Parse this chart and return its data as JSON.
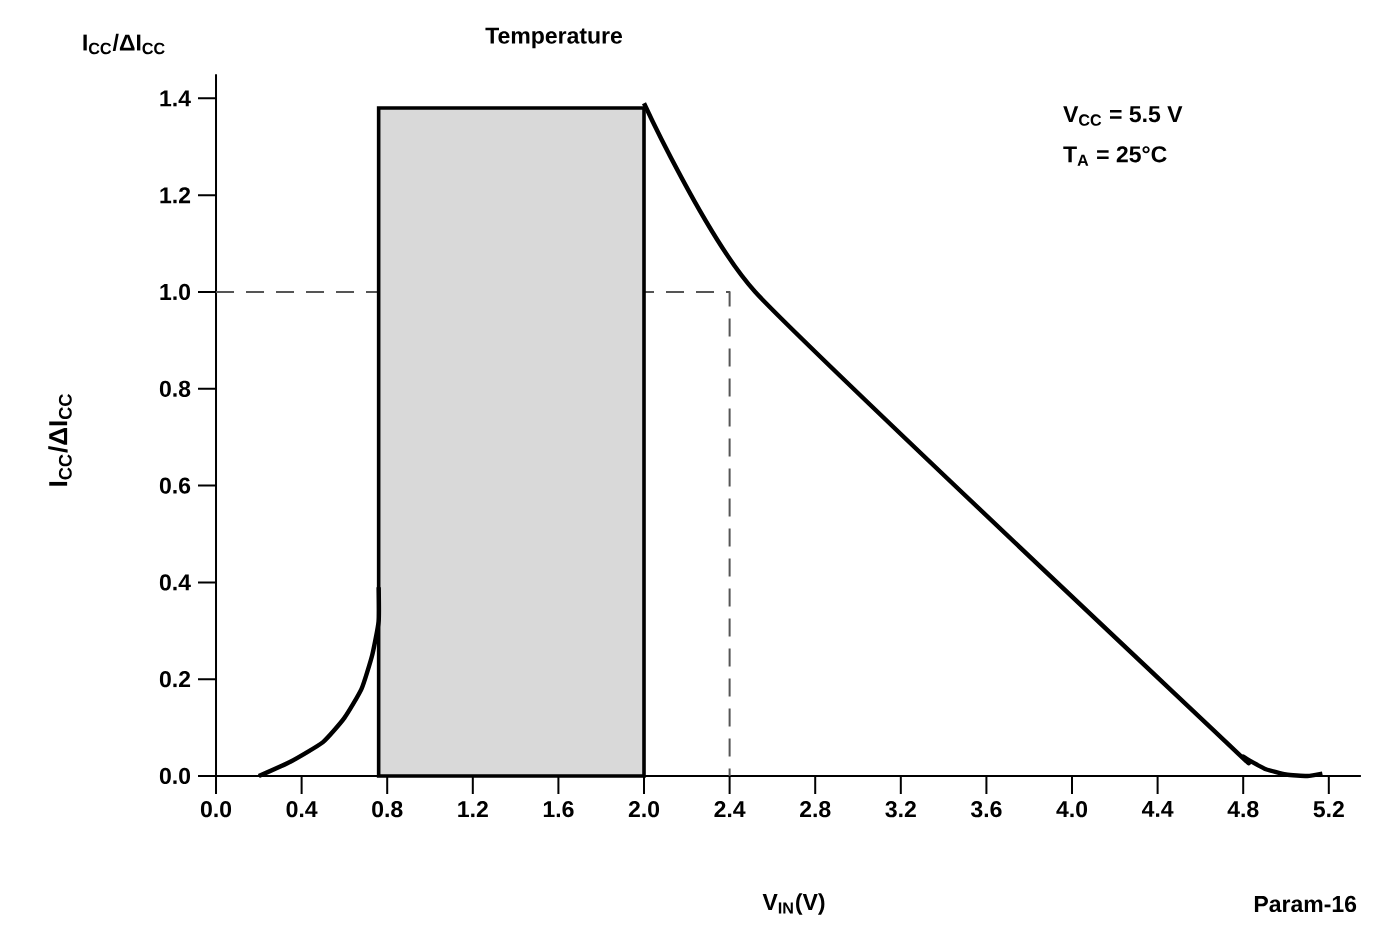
{
  "chart_data": {
    "type": "line",
    "title": "Temperature",
    "xlabel": "V$_{IN}$(V)",
    "ylabel": "I$_{CC}$/ΔI$_{CC}$",
    "annotations": [
      "I$_{CC}$/ΔI$_{CC}$",
      "V$_{CC}$ = 5.5 V",
      "T$_{A}$ = 25°C",
      "Param-16"
    ],
    "xlim": [
      0,
      5.35
    ],
    "ylim": [
      0,
      1.45
    ],
    "xticks": [
      {
        "value": 0,
        "label": "0.0"
      },
      0.4,
      0.8,
      1.2,
      1.6,
      {
        "value": 2,
        "label": "2.0"
      },
      2.4,
      2.8,
      3.2,
      3.6,
      {
        "value": 4,
        "label": "4.0"
      },
      4.4,
      4.8,
      5.2
    ],
    "yticks": [
      {
        "value": 0,
        "label": "0.0"
      },
      0.2,
      0.4,
      0.6,
      0.8,
      {
        "value": 1,
        "label": "1.0"
      },
      1.2,
      1.4
    ],
    "series": [
      {
        "line_style": "dashed",
        "color": "#555555",
        "x": [
          0,
          2.4,
          2.4
        ],
        "values": [
          1.0,
          1.0,
          0.0
        ]
      },
      {
        "type": "area",
        "color": "#d9d9d9",
        "x": [
          0.76,
          0.76,
          2.0,
          2.0
        ],
        "values": [
          0,
          1.38,
          1.38,
          0
        ]
      },
      {
        "color": "#000000",
        "x": [
          0.2,
          0.35,
          0.5,
          0.6,
          0.68,
          0.73,
          0.76,
          0.76
        ],
        "values": [
          0,
          0.03,
          0.07,
          0.12,
          0.18,
          0.25,
          0.32,
          0.39
        ]
      },
      {
        "color": "#000000",
        "x": [
          2.0,
          2.52,
          4.72,
          4.8,
          4.9,
          5.0,
          5.1,
          5.17
        ],
        "values": [
          1.39,
          1.0,
          0.07,
          0.04,
          0.015,
          0.003,
          0.0,
          0.005
        ]
      }
    ]
  }
}
